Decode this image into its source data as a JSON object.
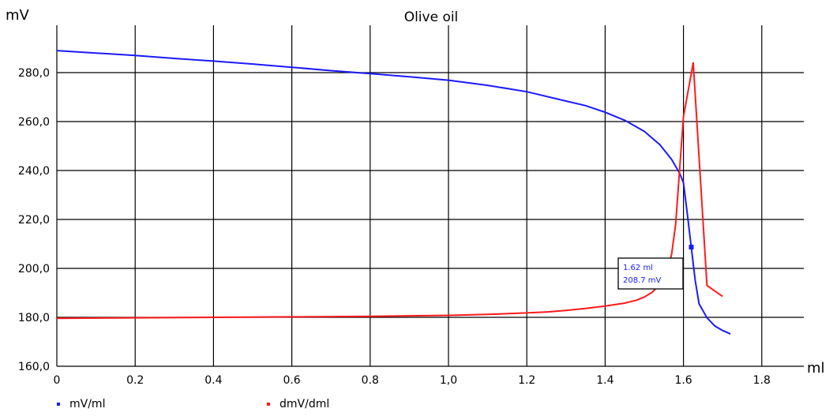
{
  "chart_data": {
    "type": "line",
    "title": "Olive oil",
    "xlabel": "ml",
    "ylabel": "mV",
    "xlim": [
      0,
      1.9
    ],
    "ylim": [
      160,
      290
    ],
    "grid": true,
    "legend_position": "bottom-left",
    "x_ticks": [
      "0",
      "0.2",
      "0.4",
      "0.6",
      "0.8",
      "1,0",
      "1.2",
      "1.4",
      "1.6",
      "1.8"
    ],
    "x_tick_values": [
      0,
      0.2,
      0.4,
      0.6,
      0.8,
      1.0,
      1.2,
      1.4,
      1.6,
      1.8
    ],
    "y_ticks": [
      "160,0",
      "180,0",
      "200,0",
      "220,0",
      "240,0",
      "260,0",
      "280,0"
    ],
    "y_tick_values": [
      160,
      180,
      200,
      220,
      240,
      260,
      280
    ],
    "series": [
      {
        "name": "mV/ml",
        "color": "#1a1aff",
        "x": [
          0,
          0.1,
          0.2,
          0.3,
          0.4,
          0.5,
          0.6,
          0.7,
          0.8,
          0.9,
          1.0,
          1.1,
          1.2,
          1.3,
          1.35,
          1.4,
          1.45,
          1.5,
          1.54,
          1.57,
          1.59,
          1.6,
          1.61,
          1.62,
          1.63,
          1.64,
          1.66,
          1.68,
          1.7,
          1.72
        ],
        "y": [
          289,
          288,
          287,
          285.8,
          284.7,
          283.5,
          282.2,
          280.8,
          279.6,
          278.3,
          276.9,
          274.8,
          272.2,
          268.4,
          266.5,
          263.8,
          260.5,
          256,
          250.5,
          244.5,
          239,
          235,
          222,
          208.7,
          195,
          185.5,
          179.8,
          176.5,
          174.6,
          173.2
        ]
      },
      {
        "name": "dmV/dml",
        "color": "#ff1a1a",
        "x": [
          0,
          0.2,
          0.4,
          0.6,
          0.8,
          1.0,
          1.1,
          1.2,
          1.25,
          1.3,
          1.35,
          1.4,
          1.45,
          1.48,
          1.5,
          1.52,
          1.54,
          1.56,
          1.57,
          1.58,
          1.6,
          1.625,
          1.66,
          1.7
        ],
        "y": [
          179.6,
          179.8,
          180,
          180.2,
          180.4,
          180.8,
          181.2,
          181.8,
          182.2,
          182.8,
          183.6,
          184.6,
          185.8,
          187,
          188.3,
          190.2,
          193.5,
          198.5,
          206,
          218,
          262,
          284,
          193,
          188.5
        ]
      }
    ],
    "annotation": {
      "x": 1.62,
      "y": 208.7,
      "line1": "1.62 ml",
      "line2": "208.7 mV"
    }
  }
}
